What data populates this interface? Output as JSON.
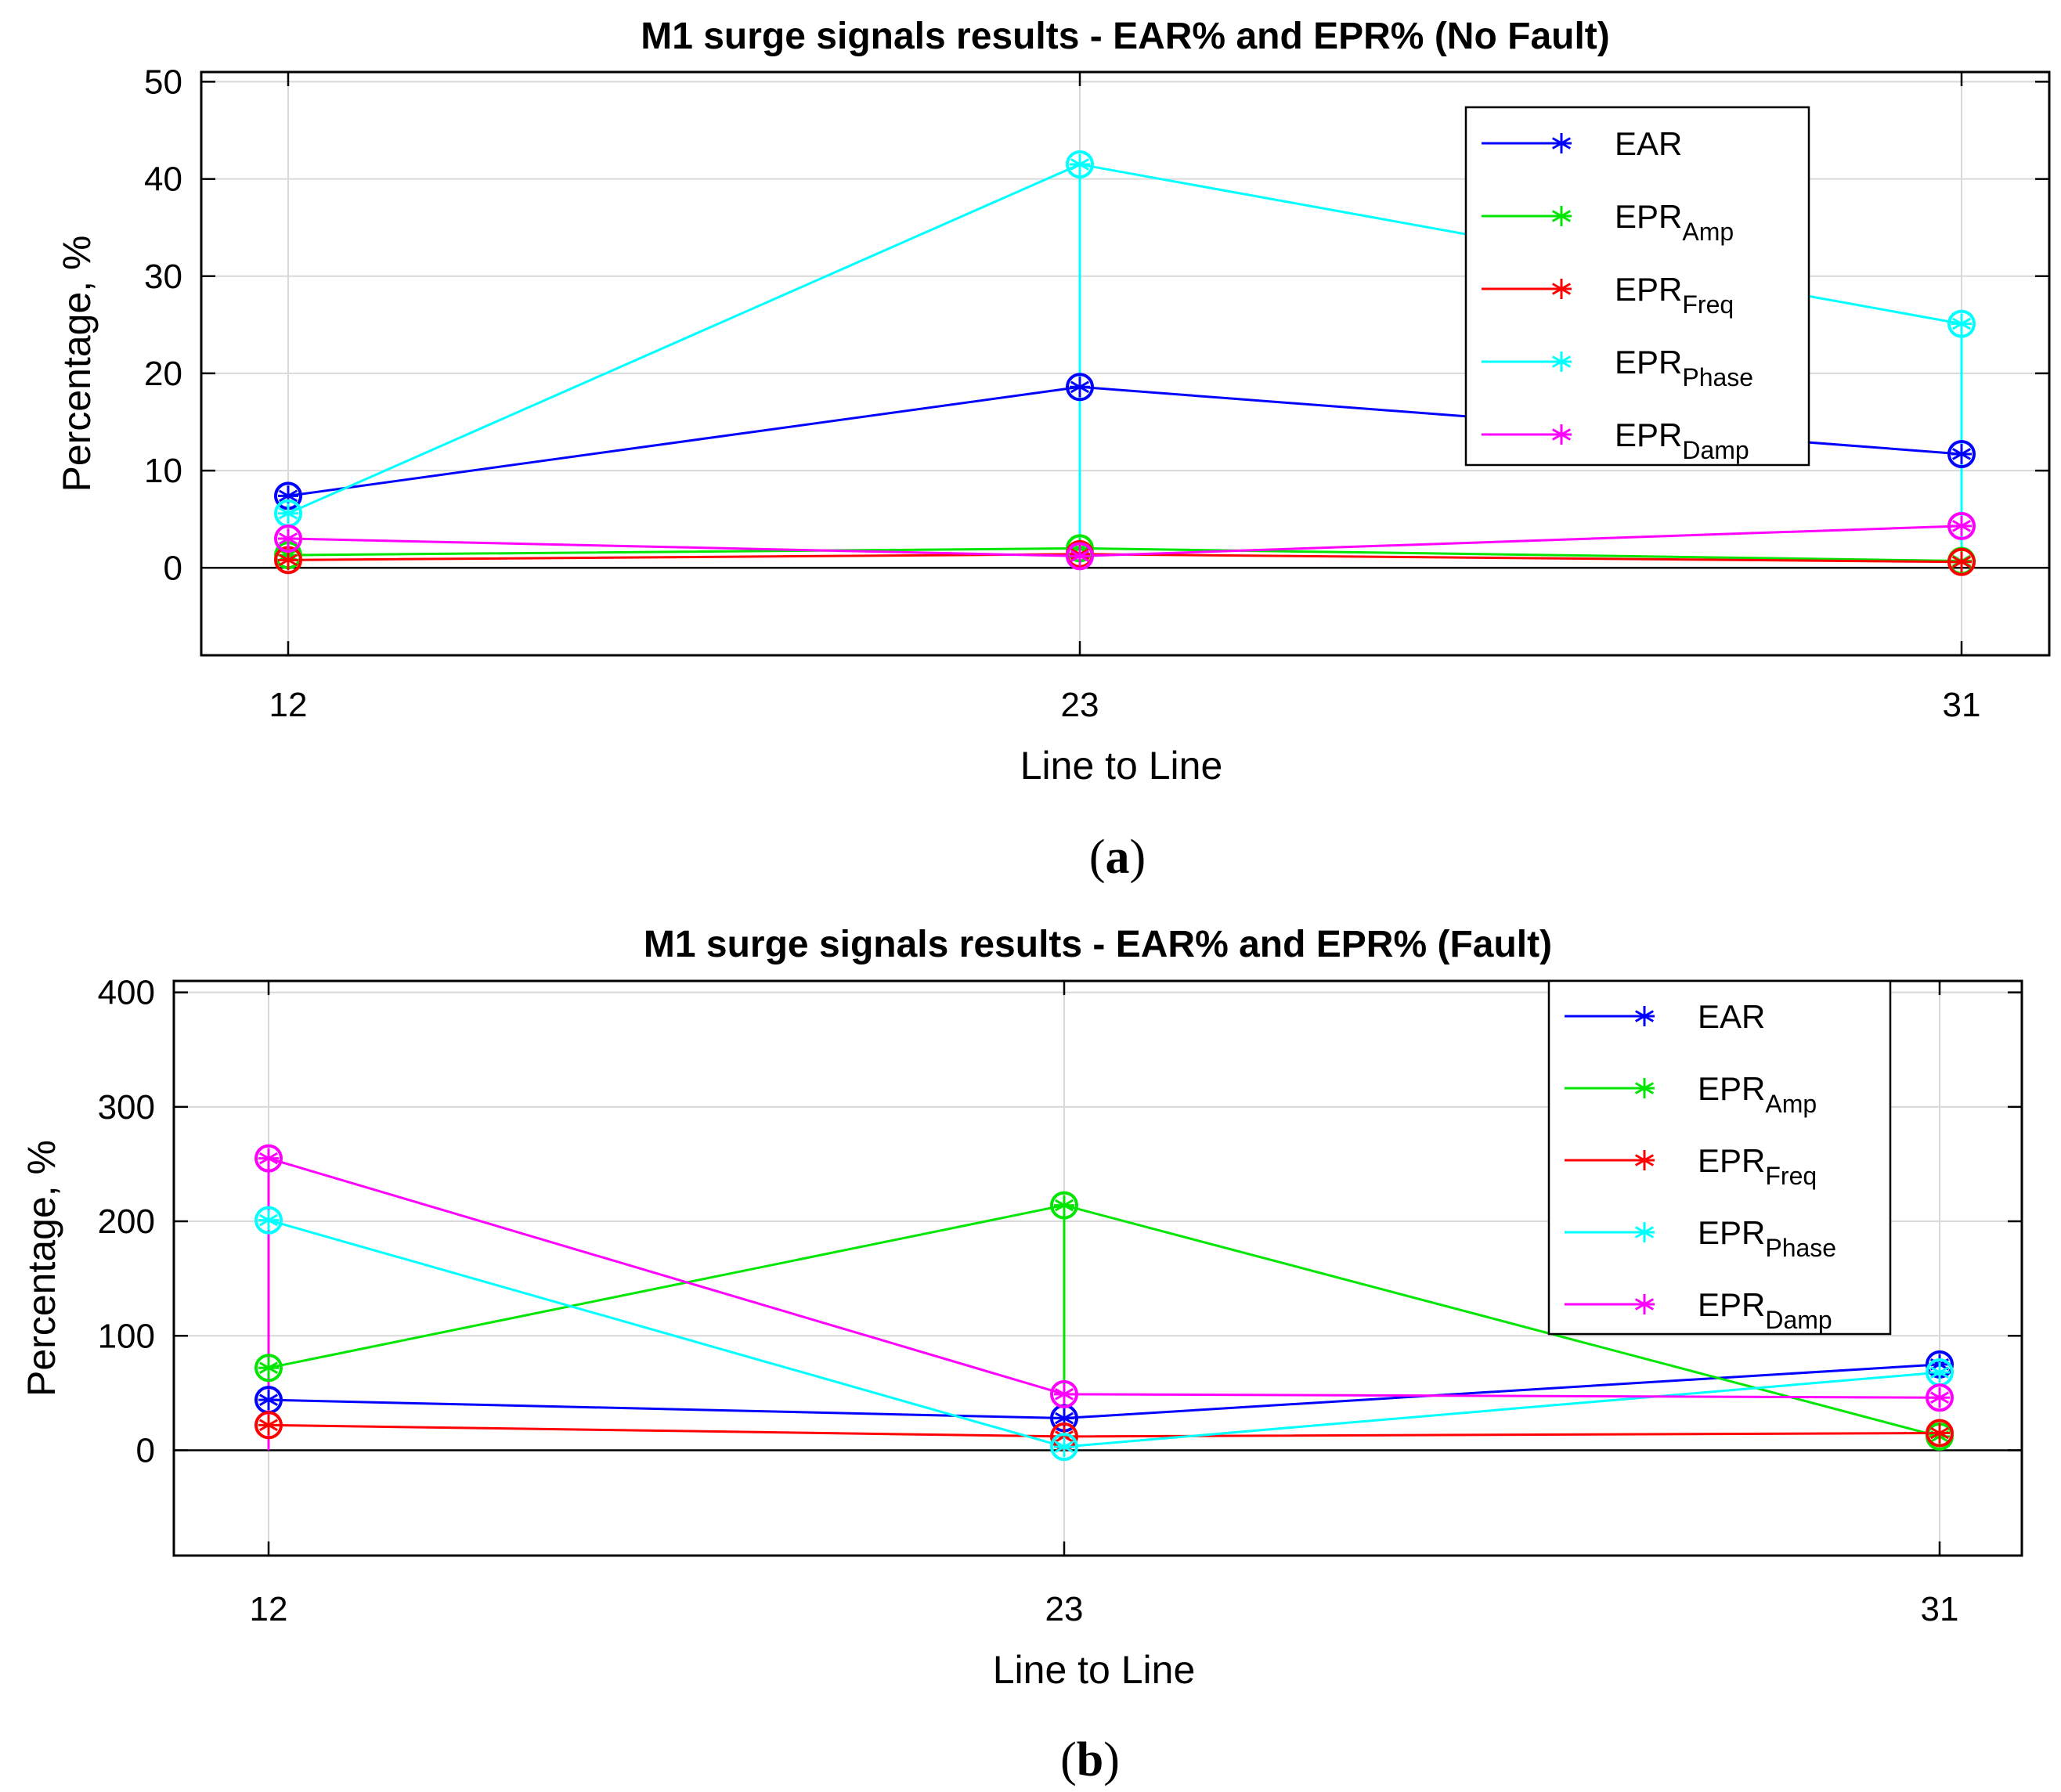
{
  "chart_data": [
    {
      "type": "line",
      "title": "M1 surge signals results - EAR% and EPR% (No Fault)",
      "xlabel": "Line to Line",
      "ylabel": "Percentage, %",
      "panel_label": "(a)",
      "categories": [
        "12",
        "23",
        "31"
      ],
      "yticks": [
        0,
        10,
        20,
        30,
        40,
        50
      ],
      "ytick_labels": [
        "0",
        "10",
        "20",
        "30",
        "40",
        "50"
      ],
      "ylim": [
        -9,
        51
      ],
      "grid": true,
      "legend_position": "top-right",
      "series": [
        {
          "name": "EAR",
          "base": "EAR",
          "sub": "",
          "color": "#0000ff",
          "values": [
            7.4,
            18.6,
            11.7
          ]
        },
        {
          "name": "EPR_Amp",
          "base": "EPR",
          "sub": "Amp",
          "color": "#00e600",
          "values": [
            1.3,
            2.0,
            0.7
          ]
        },
        {
          "name": "EPR_Freq",
          "base": "EPR",
          "sub": "Freq",
          "color": "#ff0000",
          "values": [
            0.8,
            1.4,
            0.6
          ]
        },
        {
          "name": "EPR_Phase",
          "base": "EPR",
          "sub": "Phase",
          "color": "#00ffff",
          "values": [
            5.6,
            41.5,
            25.1
          ]
        },
        {
          "name": "EPR_Damp",
          "base": "EPR",
          "sub": "Damp",
          "color": "#ff00ff",
          "values": [
            3.0,
            1.2,
            4.3
          ]
        }
      ]
    },
    {
      "type": "line",
      "title": "M1 surge signals results - EAR% and EPR% (Fault)",
      "xlabel": "Line to Line",
      "ylabel": "Percentage, %",
      "panel_label": "(b)",
      "categories": [
        "12",
        "23",
        "31"
      ],
      "yticks": [
        0,
        100,
        200,
        300,
        400
      ],
      "ytick_labels": [
        "0",
        "100",
        "200",
        "300",
        "400"
      ],
      "ylim": [
        -92,
        410
      ],
      "grid": true,
      "legend_position": "top-right",
      "series": [
        {
          "name": "EAR",
          "base": "EAR",
          "sub": "",
          "color": "#0000ff",
          "values": [
            44,
            28,
            75
          ]
        },
        {
          "name": "EPR_Amp",
          "base": "EPR",
          "sub": "Amp",
          "color": "#00e600",
          "values": [
            72,
            214,
            12
          ]
        },
        {
          "name": "EPR_Freq",
          "base": "EPR",
          "sub": "Freq",
          "color": "#ff0000",
          "values": [
            22,
            12,
            15
          ]
        },
        {
          "name": "EPR_Phase",
          "base": "EPR",
          "sub": "Phase",
          "color": "#00ffff",
          "values": [
            201,
            3,
            68
          ]
        },
        {
          "name": "EPR_Damp",
          "base": "EPR",
          "sub": "Damp",
          "color": "#ff00ff",
          "values": [
            255,
            49,
            46
          ]
        }
      ]
    }
  ]
}
